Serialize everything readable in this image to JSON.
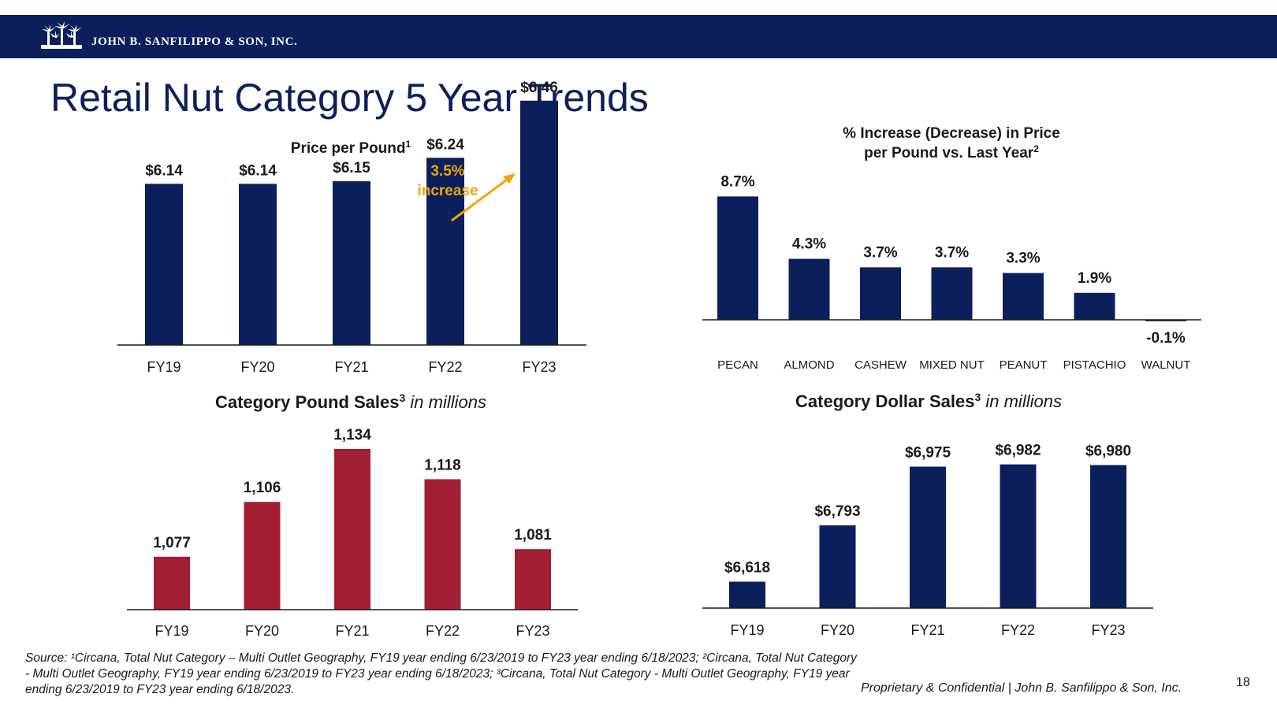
{
  "header": {
    "company": "JOHN B. SANFILIPPO & SON, INC.",
    "logo_icon": "palm-trees-logo-icon",
    "colors": {
      "bar": "#0b1f5c",
      "text": "#ffffff"
    }
  },
  "slide": {
    "title": "Retail Nut Category 5 Year Trends",
    "source_note": "Source: ¹Circana, Total Nut Category – Multi Outlet Geography, FY19 year ending 6/23/2019 to FY23 year ending 6/18/2023; ²Circana, Total Nut Category - Multi Outlet Geography, FY19 year ending 6/23/2019 to FY23 year ending 6/18/2023; ³Circana, Total Nut Category - Multi Outlet Geography, FY19 year ending 6/23/2019 to FY23 year ending 6/18/2023.",
    "confidential": "Proprietary & Confidential | John B. Sanfilippo & Son, Inc.",
    "page_number": "18"
  },
  "colors": {
    "navy": "#0b1f5c",
    "red": "#a21f33",
    "annotation": "#f0a500",
    "axis": "#1a1a1a"
  },
  "chart_data": [
    {
      "type": "bar",
      "title": "Price per Pound",
      "title_sup": "1",
      "categories": [
        "FY19",
        "FY20",
        "FY21",
        "FY22",
        "FY23"
      ],
      "values": [
        6.14,
        6.14,
        6.15,
        6.24,
        6.46
      ],
      "labels": [
        "$6.14",
        "$6.14",
        "$6.15",
        "$6.24",
        "$6.46"
      ],
      "color": "#0b1f5c",
      "annotation": {
        "line1": "3.5%",
        "line2": "increase",
        "from": "FY22",
        "to": "FY23"
      }
    },
    {
      "type": "bar",
      "title": "% Increase (Decrease) in Price",
      "title_line2": "per Pound vs. Last Year",
      "title_sup": "2",
      "categories": [
        "PECAN",
        "ALMOND",
        "CASHEW",
        "MIXED NUT",
        "PEANUT",
        "PISTACHIO",
        "WALNUT"
      ],
      "values": [
        8.7,
        4.3,
        3.7,
        3.7,
        3.3,
        1.9,
        -0.1
      ],
      "labels": [
        "8.7%",
        "4.3%",
        "3.7%",
        "3.7%",
        "3.3%",
        "1.9%",
        "-0.1%"
      ],
      "color": "#0b1f5c"
    },
    {
      "type": "bar",
      "title": "Category Pound Sales",
      "title_sup": "3",
      "title_unit": "in millions",
      "categories": [
        "FY19",
        "FY20",
        "FY21",
        "FY22",
        "FY23"
      ],
      "values": [
        1077,
        1106,
        1134,
        1118,
        1081
      ],
      "labels": [
        "1,077",
        "1,106",
        "1,134",
        "1,118",
        "1,081"
      ],
      "color": "#a21f33"
    },
    {
      "type": "bar",
      "title": "Category Dollar Sales",
      "title_sup": "3",
      "title_unit": "in millions",
      "categories": [
        "FY19",
        "FY20",
        "FY21",
        "FY22",
        "FY23"
      ],
      "values": [
        6618,
        6793,
        6975,
        6982,
        6980
      ],
      "labels": [
        "$6,618",
        "$6,793",
        "$6,975",
        "$6,982",
        "$6,980"
      ],
      "color": "#0b1f5c"
    }
  ]
}
